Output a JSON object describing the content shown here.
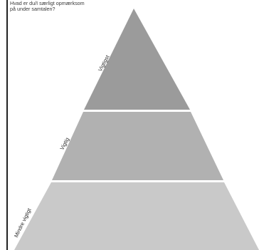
{
  "question": {
    "line1": "Hvad er du/I særligt opmærksom",
    "line2": "på under samtalen?"
  },
  "tiers": [
    {
      "label": "Vigtigst",
      "color": "#9b9b9b"
    },
    {
      "label": "Vigtig",
      "color": "#b1b1b1"
    },
    {
      "label": "Mindre vigtigt",
      "color": "#c9c9c9"
    }
  ]
}
